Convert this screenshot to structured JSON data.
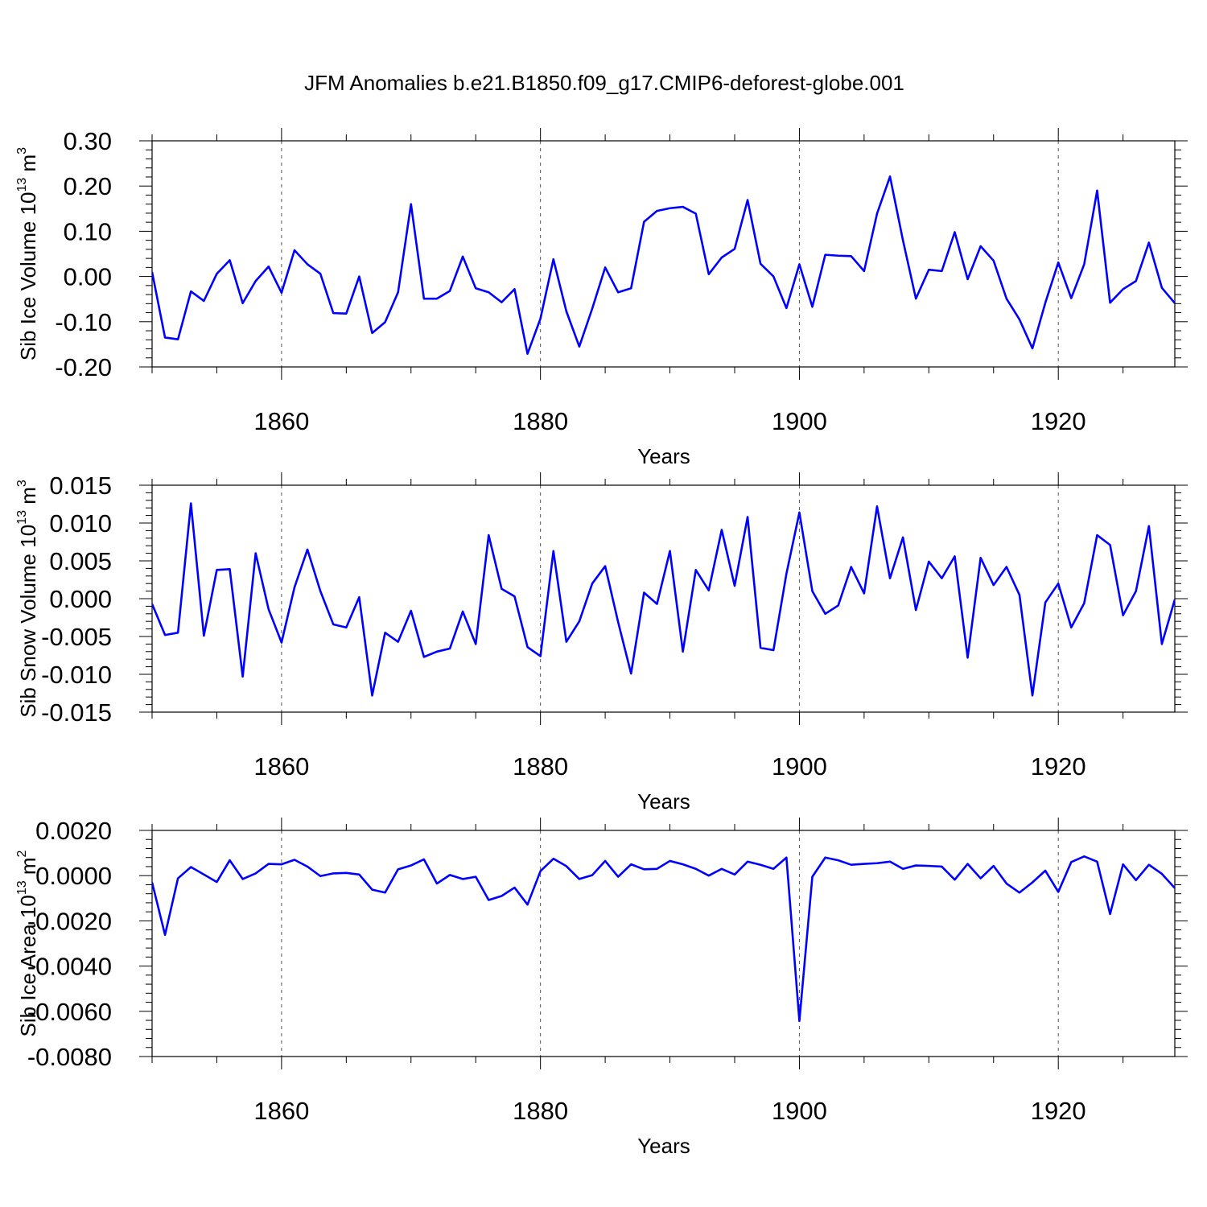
{
  "title": "JFM Anomalies b.e21.B1850.f09_g17.CMIP6-deforest-globe.001",
  "colors": {
    "line": "#0000ff",
    "axis": "#000000",
    "grid": "#000000"
  },
  "chart_data": [
    {
      "type": "line",
      "ylabel": "Sib Ice Volume 10^13 m^3",
      "ylabel_main": "Sib Ice Volume 10",
      "ylabel_exp": "13",
      "ylabel_unit": "m",
      "ylabel_unit_exp": "3",
      "xlabel": "Years",
      "xlim": [
        1850,
        1929
      ],
      "ylim": [
        -0.2,
        0.3
      ],
      "y_ticks": [
        "0.30",
        "0.20",
        "0.10",
        "0.00",
        "-0.10",
        "-0.20"
      ],
      "y_tick_values": [
        0.3,
        0.2,
        0.1,
        0.0,
        -0.1,
        -0.2
      ],
      "x_ticks": [
        "1860",
        "1880",
        "1900",
        "1920"
      ],
      "x_tick_values": [
        1860,
        1880,
        1900,
        1920
      ],
      "grid": "dashed vertical at major x ticks",
      "x_start": 1850,
      "values": [
        0.01,
        -0.135,
        -0.139,
        -0.033,
        -0.054,
        0.006,
        0.036,
        -0.059,
        -0.01,
        0.022,
        -0.036,
        0.058,
        0.027,
        0.006,
        -0.081,
        -0.082,
        0.0,
        -0.125,
        -0.101,
        -0.035,
        0.16,
        -0.049,
        -0.049,
        -0.032,
        0.044,
        -0.026,
        -0.035,
        -0.057,
        -0.028,
        -0.171,
        -0.093,
        0.038,
        -0.077,
        -0.155,
        -0.071,
        0.02,
        -0.035,
        -0.026,
        0.121,
        0.145,
        0.151,
        0.154,
        0.139,
        0.005,
        0.042,
        0.061,
        0.169,
        0.028,
        0.0,
        -0.07,
        0.027,
        -0.067,
        0.048,
        0.046,
        0.045,
        0.012,
        0.139,
        0.221,
        0.08,
        -0.049,
        0.015,
        0.012,
        0.098,
        -0.006,
        0.067,
        0.035,
        -0.049,
        -0.095,
        -0.159,
        -0.058,
        0.031,
        -0.048,
        0.027,
        0.19,
        -0.058,
        -0.028,
        -0.01,
        0.075,
        -0.025,
        -0.059
      ]
    },
    {
      "type": "line",
      "ylabel": "Sib Snow Volume 10^13 m^3",
      "ylabel_main": "Sib Snow Volume 10",
      "ylabel_exp": "13",
      "ylabel_unit": "m",
      "ylabel_unit_exp": "3",
      "xlabel": "Years",
      "xlim": [
        1850,
        1929
      ],
      "ylim": [
        -0.015,
        0.015
      ],
      "y_ticks": [
        "0.015",
        "0.010",
        "0.005",
        "0.000",
        "-0.005",
        "-0.010",
        "-0.015"
      ],
      "y_tick_values": [
        0.015,
        0.01,
        0.005,
        0.0,
        -0.005,
        -0.01,
        -0.015
      ],
      "x_ticks": [
        "1860",
        "1880",
        "1900",
        "1920"
      ],
      "x_tick_values": [
        1860,
        1880,
        1900,
        1920
      ],
      "grid": "dashed vertical at major x ticks",
      "x_start": 1850,
      "values": [
        -0.0007,
        -0.0048,
        -0.0045,
        0.0126,
        -0.0049,
        0.0038,
        0.0039,
        -0.0103,
        0.006,
        -0.0014,
        -0.0058,
        0.0015,
        0.0065,
        0.001,
        -0.0034,
        -0.0038,
        0.0002,
        -0.0128,
        -0.0045,
        -0.0057,
        -0.0016,
        -0.0077,
        -0.007,
        -0.0066,
        -0.0017,
        -0.006,
        0.0084,
        0.0013,
        0.0003,
        -0.0064,
        -0.0076,
        0.0063,
        -0.0057,
        -0.003,
        0.002,
        0.0043,
        -0.0031,
        -0.0099,
        0.0008,
        -0.0007,
        0.0063,
        -0.007,
        0.0038,
        0.0011,
        0.0091,
        0.0017,
        0.0108,
        -0.0065,
        -0.0068,
        0.0033,
        0.0114,
        0.001,
        -0.002,
        -0.0009,
        0.0042,
        0.0007,
        0.0122,
        0.0027,
        0.0081,
        -0.0015,
        0.0049,
        0.0027,
        0.0056,
        -0.0078,
        0.0054,
        0.0018,
        0.0042,
        0.0005,
        -0.0128,
        -0.0005,
        0.002,
        -0.0038,
        -0.0006,
        0.0084,
        0.0071,
        -0.0022,
        0.001,
        0.0096,
        -0.006,
        -0.0001
      ]
    },
    {
      "type": "line",
      "ylabel": "Sib Ice Area 10^13 m^2",
      "ylabel_main": "Sib Ice Area 10",
      "ylabel_exp": "13",
      "ylabel_unit": "m",
      "ylabel_unit_exp": "2",
      "xlabel": "Years",
      "xlim": [
        1850,
        1929
      ],
      "ylim": [
        -0.008,
        0.002
      ],
      "y_ticks": [
        "0.0020",
        "0.0000",
        "-0.0020",
        "-0.0040",
        "-0.0060",
        "-0.0080"
      ],
      "y_tick_values": [
        0.002,
        0.0,
        -0.002,
        -0.004,
        -0.006,
        -0.008
      ],
      "x_ticks": [
        "1860",
        "1880",
        "1900",
        "1920"
      ],
      "x_tick_values": [
        1860,
        1880,
        1900,
        1920
      ],
      "grid": "dashed vertical at major x ticks",
      "x_start": 1850,
      "values": [
        -0.0003,
        -0.00262,
        -0.00012,
        0.00038,
        5e-05,
        -0.00028,
        0.00068,
        -0.00015,
        0.0001,
        0.00052,
        0.0005,
        0.0007,
        0.0004,
        -2e-05,
        0.0001,
        0.00012,
        5e-05,
        -0.00062,
        -0.00075,
        0.00028,
        0.00045,
        0.00072,
        -0.00035,
        3e-05,
        -0.00015,
        -5e-05,
        -0.00108,
        -0.0009,
        -0.00053,
        -0.00128,
        0.0002,
        0.00075,
        0.00042,
        -0.00015,
        2e-05,
        0.00065,
        -5e-05,
        0.0005,
        0.00028,
        0.0003,
        0.00065,
        0.0005,
        0.0003,
        0.0,
        0.0003,
        5e-05,
        0.00062,
        0.00048,
        0.0003,
        0.0008,
        -0.00643,
        -5e-05,
        0.0008,
        0.00068,
        0.00048,
        0.00052,
        0.00055,
        0.00062,
        0.0003,
        0.00045,
        0.00043,
        0.0004,
        -0.00018,
        0.00052,
        -0.00012,
        0.00043,
        -0.00035,
        -0.00075,
        -0.0003,
        0.00022,
        -0.00072,
        0.0006,
        0.00085,
        0.00062,
        -0.0017,
        0.0005,
        -0.0002,
        0.00048,
        8e-05,
        -0.00055
      ]
    }
  ]
}
